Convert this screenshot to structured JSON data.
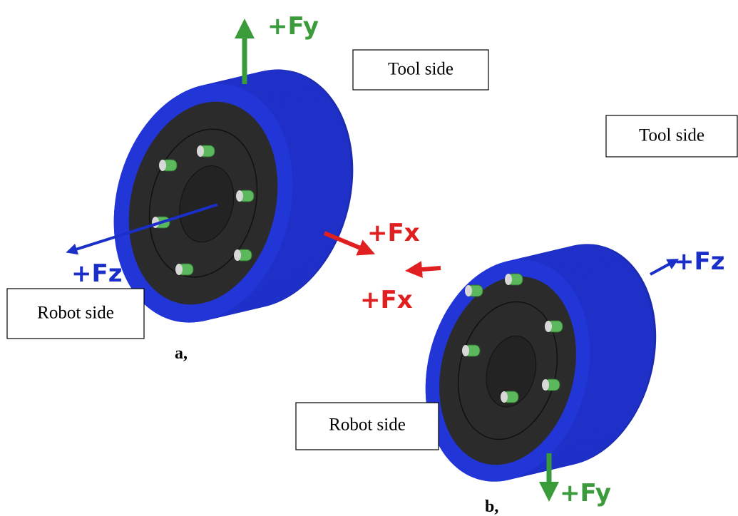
{
  "panels": [
    {
      "caption": "a,",
      "tool_label": "Tool side",
      "robot_label": "Robot side",
      "axes": {
        "fy": "+Fy",
        "fx": "+Fx",
        "fz": "+Fz"
      }
    },
    {
      "caption": "b,",
      "tool_label": "Tool side",
      "robot_label": "Robot side",
      "axes": {
        "fy": "+Fy",
        "fx": "+Fx",
        "fz": "+Fz"
      }
    }
  ]
}
